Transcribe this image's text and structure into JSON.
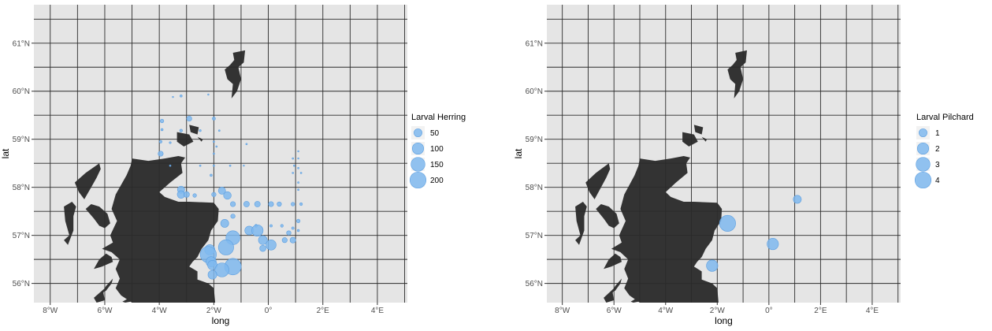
{
  "colors": {
    "panel": "#e5e5e5",
    "grid": "#2b2b2b",
    "land": "#333333",
    "point": "#7fb8ee",
    "point_stroke": "#5d9fe0",
    "legend_key_bg": "#f2f2f2"
  },
  "chart_data": [
    {
      "type": "scatter",
      "title": "",
      "xlabel": "long",
      "ylabel": "lat",
      "xlim": [
        -8.6,
        5.1
      ],
      "ylim": [
        55.6,
        61.8
      ],
      "x_tick_labels": [
        "8°W",
        "6°W",
        "4°W",
        "2°W",
        "0°",
        "2°E",
        "4°E"
      ],
      "x_ticks": [
        -8,
        -6,
        -4,
        -2,
        0,
        2,
        4
      ],
      "y_tick_labels": [
        "56°N",
        "57°N",
        "58°N",
        "59°N",
        "60°N",
        "61°N"
      ],
      "y_ticks": [
        56,
        57,
        58,
        59,
        60,
        61
      ],
      "grid": true,
      "legend": {
        "title": "Larval Herring",
        "position": "right",
        "size_breaks": [
          50,
          100,
          150,
          200
        ],
        "labels": [
          "50",
          "100",
          "150",
          "200"
        ]
      },
      "size_range": [
        0,
        210
      ],
      "points": [
        {
          "x": -3.2,
          "y": 59.9,
          "v": 4
        },
        {
          "x": -3.5,
          "y": 59.88,
          "v": 1
        },
        {
          "x": -2.2,
          "y": 59.93,
          "v": 1
        },
        {
          "x": -3.9,
          "y": 59.38,
          "v": 10
        },
        {
          "x": -2.9,
          "y": 59.43,
          "v": 20
        },
        {
          "x": -2.0,
          "y": 59.43,
          "v": 8
        },
        {
          "x": -3.9,
          "y": 59.2,
          "v": 4
        },
        {
          "x": -3.2,
          "y": 59.18,
          "v": 6
        },
        {
          "x": -2.5,
          "y": 59.18,
          "v": 3
        },
        {
          "x": -1.8,
          "y": 59.18,
          "v": 2
        },
        {
          "x": -3.95,
          "y": 58.95,
          "v": 6
        },
        {
          "x": -3.6,
          "y": 58.93,
          "v": 3
        },
        {
          "x": -2.0,
          "y": 58.95,
          "v": 2
        },
        {
          "x": -1.9,
          "y": 58.85,
          "v": 2
        },
        {
          "x": -0.8,
          "y": 58.9,
          "v": 2
        },
        {
          "x": -3.95,
          "y": 58.7,
          "v": 20
        },
        {
          "x": -2.0,
          "y": 58.7,
          "v": 2
        },
        {
          "x": 1.1,
          "y": 58.75,
          "v": 1
        },
        {
          "x": 0.9,
          "y": 58.6,
          "v": 2
        },
        {
          "x": 1.1,
          "y": 58.6,
          "v": 1
        },
        {
          "x": -3.6,
          "y": 58.45,
          "v": 2
        },
        {
          "x": -2.5,
          "y": 58.45,
          "v": 2
        },
        {
          "x": -2.0,
          "y": 58.45,
          "v": 2
        },
        {
          "x": -1.4,
          "y": 58.45,
          "v": 2
        },
        {
          "x": -0.9,
          "y": 58.45,
          "v": 1
        },
        {
          "x": 1.1,
          "y": 58.4,
          "v": 2
        },
        {
          "x": 0.95,
          "y": 58.45,
          "v": 2
        },
        {
          "x": 0.9,
          "y": 58.3,
          "v": 2
        },
        {
          "x": 1.2,
          "y": 58.3,
          "v": 2
        },
        {
          "x": -2.1,
          "y": 58.25,
          "v": 4
        },
        {
          "x": 1.1,
          "y": 58.1,
          "v": 2
        },
        {
          "x": 1.1,
          "y": 57.95,
          "v": 2
        },
        {
          "x": -3.2,
          "y": 57.95,
          "v": 40
        },
        {
          "x": -3.2,
          "y": 57.85,
          "v": 45
        },
        {
          "x": -3.0,
          "y": 57.85,
          "v": 25
        },
        {
          "x": -2.7,
          "y": 57.83,
          "v": 10
        },
        {
          "x": -2.0,
          "y": 57.85,
          "v": 15
        },
        {
          "x": -1.7,
          "y": 57.93,
          "v": 40
        },
        {
          "x": -1.5,
          "y": 57.83,
          "v": 45
        },
        {
          "x": -1.3,
          "y": 57.65,
          "v": 20
        },
        {
          "x": -0.8,
          "y": 57.65,
          "v": 25
        },
        {
          "x": -0.4,
          "y": 57.65,
          "v": 25
        },
        {
          "x": 0.1,
          "y": 57.65,
          "v": 20
        },
        {
          "x": 0.4,
          "y": 57.65,
          "v": 15
        },
        {
          "x": 0.9,
          "y": 57.65,
          "v": 10
        },
        {
          "x": 1.2,
          "y": 57.65,
          "v": 6
        },
        {
          "x": -1.3,
          "y": 57.4,
          "v": 15
        },
        {
          "x": 1.1,
          "y": 57.3,
          "v": 10
        },
        {
          "x": -1.6,
          "y": 57.25,
          "v": 50
        },
        {
          "x": -0.45,
          "y": 57.2,
          "v": 6
        },
        {
          "x": 0.1,
          "y": 57.2,
          "v": 5
        },
        {
          "x": 0.5,
          "y": 57.2,
          "v": 6
        },
        {
          "x": 0.9,
          "y": 57.15,
          "v": 5
        },
        {
          "x": 1.1,
          "y": 57.1,
          "v": 4
        },
        {
          "x": -0.7,
          "y": 57.1,
          "v": 60
        },
        {
          "x": -0.4,
          "y": 57.1,
          "v": 100
        },
        {
          "x": 0.75,
          "y": 57.05,
          "v": 15
        },
        {
          "x": -1.3,
          "y": 56.95,
          "v": 150
        },
        {
          "x": -0.2,
          "y": 56.9,
          "v": 60
        },
        {
          "x": 0.6,
          "y": 56.9,
          "v": 20
        },
        {
          "x": 0.9,
          "y": 56.9,
          "v": 25
        },
        {
          "x": 0.1,
          "y": 56.8,
          "v": 80
        },
        {
          "x": -0.2,
          "y": 56.73,
          "v": 30
        },
        {
          "x": -1.55,
          "y": 56.75,
          "v": 180
        },
        {
          "x": -2.15,
          "y": 56.7,
          "v": 80
        },
        {
          "x": -2.2,
          "y": 56.6,
          "v": 200
        },
        {
          "x": -2.1,
          "y": 56.45,
          "v": 80
        },
        {
          "x": -2.05,
          "y": 56.38,
          "v": 70
        },
        {
          "x": -1.3,
          "y": 56.35,
          "v": 210
        },
        {
          "x": -1.7,
          "y": 56.28,
          "v": 150
        },
        {
          "x": -2.05,
          "y": 56.18,
          "v": 60
        }
      ]
    },
    {
      "type": "scatter",
      "title": "",
      "xlabel": "long",
      "ylabel": "lat",
      "xlim": [
        -8.6,
        5.1
      ],
      "ylim": [
        55.6,
        61.8
      ],
      "x_tick_labels": [
        "8°W",
        "6°W",
        "4°W",
        "2°W",
        "0°",
        "2°E",
        "4°E"
      ],
      "x_ticks": [
        -8,
        -6,
        -4,
        -2,
        0,
        2,
        4
      ],
      "y_tick_labels": [
        "56°N",
        "57°N",
        "58°N",
        "59°N",
        "60°N",
        "61°N"
      ],
      "y_ticks": [
        56,
        57,
        58,
        59,
        60,
        61
      ],
      "grid": true,
      "legend": {
        "title": "Larval Pilchard",
        "position": "right",
        "size_breaks": [
          1,
          2,
          3,
          4
        ],
        "labels": [
          "1",
          "2",
          "3",
          "4"
        ]
      },
      "size_range": [
        0,
        4.2
      ],
      "points": [
        {
          "x": 1.1,
          "y": 57.75,
          "v": 1
        },
        {
          "x": -1.6,
          "y": 57.25,
          "v": 4
        },
        {
          "x": 0.15,
          "y": 56.82,
          "v": 2
        },
        {
          "x": -2.2,
          "y": 56.37,
          "v": 2
        }
      ]
    }
  ]
}
